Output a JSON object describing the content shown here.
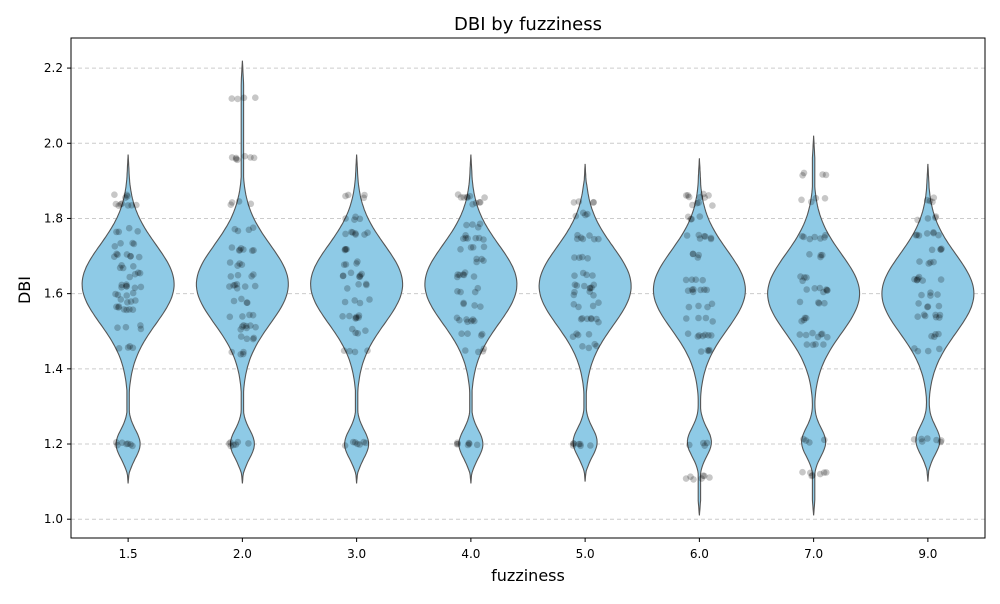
{
  "chart_data": {
    "type": "violin",
    "title": "DBI by fuzziness",
    "xlabel": "fuzziness",
    "ylabel": "DBI",
    "categories": [
      "1.5",
      "2.0",
      "3.0",
      "4.0",
      "5.0",
      "6.0",
      "7.0",
      "9.0"
    ],
    "ylim": [
      0.95,
      2.28
    ],
    "yticks": [
      "1.0",
      "1.2",
      "1.4",
      "1.6",
      "1.8",
      "2.0",
      "2.2"
    ],
    "grid": "y-dashed",
    "violin_color": "#8ecae6",
    "point_color": "#000000",
    "violins": [
      {
        "range": [
          1.095,
          1.97
        ],
        "lower_mode": 1.2,
        "upper_mode": 1.625,
        "half_width_upper": 46,
        "half_width_lower": 12,
        "min_density": 1.35
      },
      {
        "range": [
          1.095,
          2.22
        ],
        "lower_mode": 1.2,
        "upper_mode": 1.625,
        "half_width_upper": 46,
        "half_width_lower": 12,
        "min_density": 1.35
      },
      {
        "range": [
          1.095,
          1.97
        ],
        "lower_mode": 1.2,
        "upper_mode": 1.625,
        "half_width_upper": 46,
        "half_width_lower": 12,
        "min_density": 1.35
      },
      {
        "range": [
          1.095,
          1.97
        ],
        "lower_mode": 1.2,
        "upper_mode": 1.625,
        "half_width_upper": 46,
        "half_width_lower": 12,
        "min_density": 1.35
      },
      {
        "range": [
          1.1,
          1.945
        ],
        "lower_mode": 1.205,
        "upper_mode": 1.62,
        "half_width_upper": 46,
        "half_width_lower": 12,
        "min_density": 1.36
      },
      {
        "range": [
          1.01,
          1.96
        ],
        "lower_mode": 1.205,
        "upper_mode": 1.61,
        "half_width_upper": 46,
        "half_width_lower": 12,
        "min_density": 1.36
      },
      {
        "range": [
          1.01,
          2.02
        ],
        "lower_mode": 1.205,
        "upper_mode": 1.6,
        "half_width_upper": 46,
        "half_width_lower": 12,
        "min_density": 1.36
      },
      {
        "range": [
          1.1,
          1.945
        ],
        "lower_mode": 1.21,
        "upper_mode": 1.6,
        "half_width_upper": 46,
        "half_width_lower": 12,
        "min_density": 1.37
      }
    ],
    "points": [
      {
        "category": "1.5",
        "bands": [
          1.2,
          1.46,
          1.51,
          1.56,
          1.58,
          1.6,
          1.62,
          1.65,
          1.67,
          1.7,
          1.73,
          1.77,
          1.84,
          1.86
        ]
      },
      {
        "category": "2.0",
        "bands": [
          1.2,
          1.44,
          1.48,
          1.51,
          1.54,
          1.58,
          1.62,
          1.65,
          1.68,
          1.72,
          1.77,
          1.84,
          1.96,
          2.12
        ]
      },
      {
        "category": "3.0",
        "bands": [
          1.2,
          1.45,
          1.5,
          1.54,
          1.58,
          1.62,
          1.65,
          1.68,
          1.72,
          1.76,
          1.8,
          1.86
        ]
      },
      {
        "category": "4.0",
        "bands": [
          1.2,
          1.45,
          1.49,
          1.53,
          1.57,
          1.61,
          1.65,
          1.69,
          1.72,
          1.75,
          1.78,
          1.84,
          1.86
        ]
      },
      {
        "category": "5.0",
        "bands": [
          1.2,
          1.46,
          1.49,
          1.53,
          1.57,
          1.6,
          1.62,
          1.65,
          1.7,
          1.75,
          1.81,
          1.84
        ]
      },
      {
        "category": "6.0",
        "bands": [
          1.11,
          1.2,
          1.45,
          1.49,
          1.53,
          1.57,
          1.61,
          1.64,
          1.7,
          1.75,
          1.8,
          1.84,
          1.86
        ]
      },
      {
        "category": "7.0",
        "bands": [
          1.12,
          1.21,
          1.46,
          1.49,
          1.53,
          1.58,
          1.61,
          1.64,
          1.7,
          1.75,
          1.85,
          1.92
        ]
      },
      {
        "category": "9.0",
        "bands": [
          1.21,
          1.45,
          1.49,
          1.54,
          1.57,
          1.6,
          1.64,
          1.68,
          1.72,
          1.76,
          1.8,
          1.85
        ]
      }
    ]
  }
}
